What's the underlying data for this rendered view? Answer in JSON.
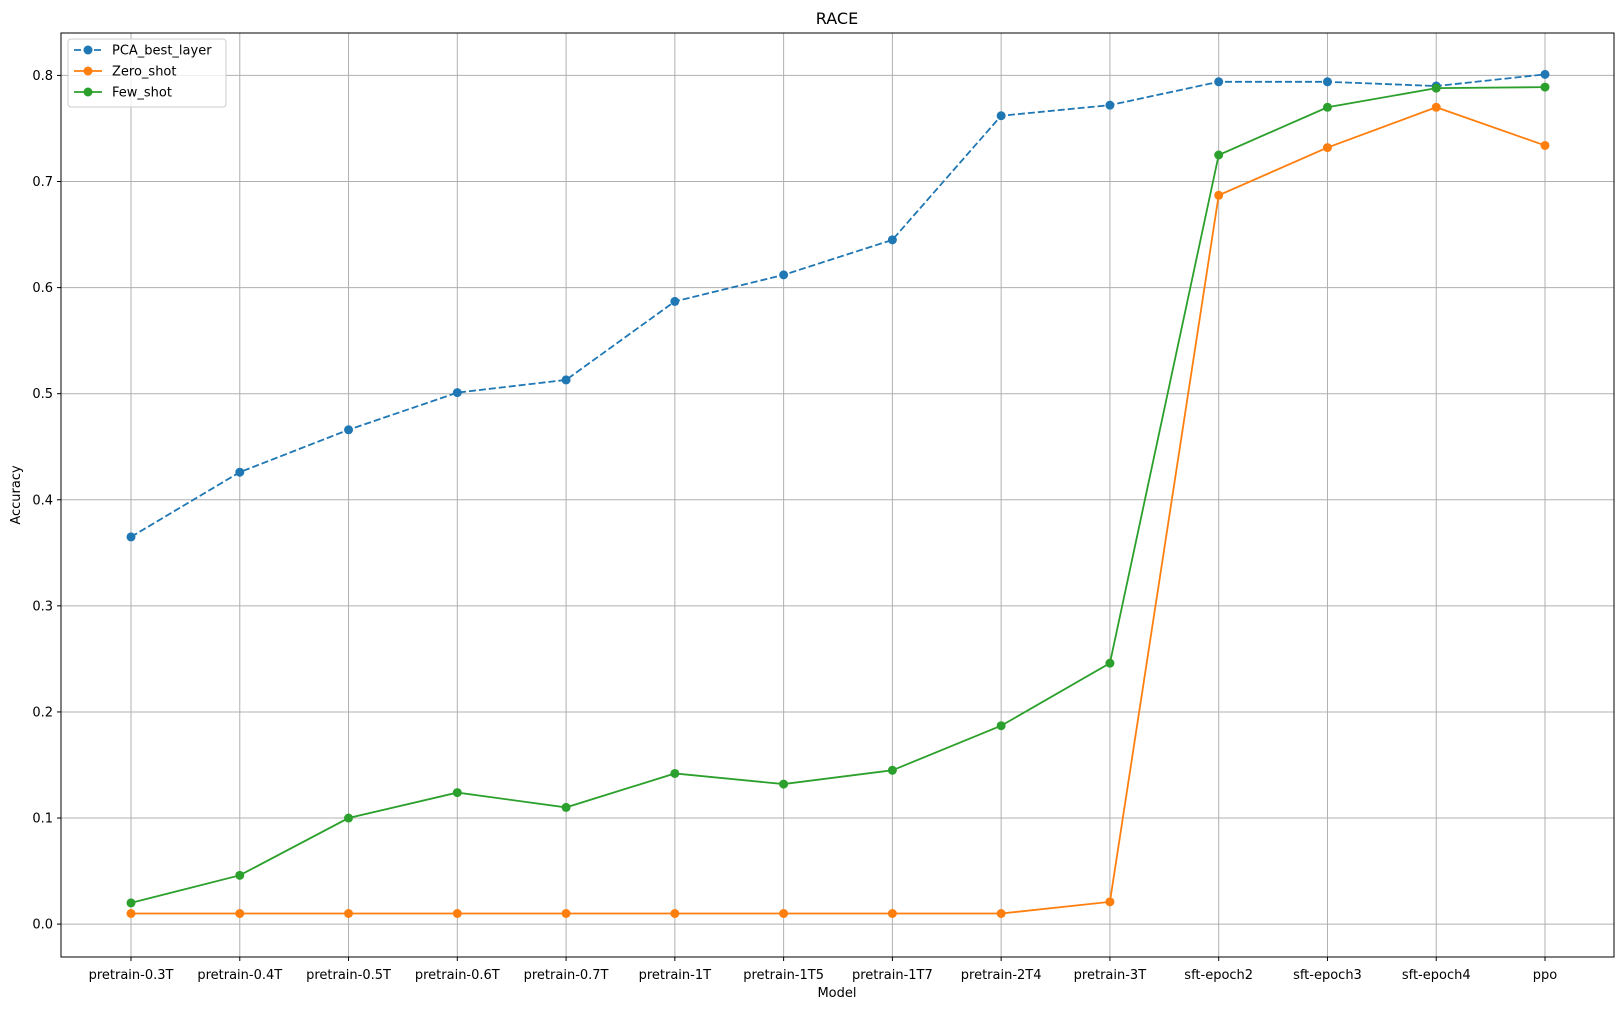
{
  "chart_data": {
    "type": "line",
    "title": "RACE",
    "xlabel": "Model",
    "ylabel": "Accuracy",
    "categories": [
      "pretrain-0.3T",
      "pretrain-0.4T",
      "pretrain-0.5T",
      "pretrain-0.6T",
      "pretrain-0.7T",
      "pretrain-1T",
      "pretrain-1T5",
      "pretrain-1T7",
      "pretrain-2T4",
      "pretrain-3T",
      "sft-epoch2",
      "sft-epoch3",
      "sft-epoch4",
      "ppo"
    ],
    "ylim": [
      -0.031,
      0.84
    ],
    "yticks": [
      0.0,
      0.1,
      0.2,
      0.3,
      0.4,
      0.5,
      0.6,
      0.7,
      0.8
    ],
    "ytick_labels": [
      "0.0",
      "0.1",
      "0.2",
      "0.3",
      "0.4",
      "0.5",
      "0.6",
      "0.7",
      "0.8"
    ],
    "grid": true,
    "legend_position": "top-left",
    "series": [
      {
        "name": "PCA_best_layer",
        "color": "#1f77b4",
        "linestyle": "dashed",
        "marker": "circle",
        "values": [
          0.365,
          0.426,
          0.466,
          0.501,
          0.513,
          0.587,
          0.612,
          0.645,
          0.762,
          0.772,
          0.794,
          0.794,
          0.79,
          0.801
        ]
      },
      {
        "name": "Zero_shot",
        "color": "#ff7f0e",
        "linestyle": "solid",
        "marker": "circle",
        "values": [
          0.01,
          0.01,
          0.01,
          0.01,
          0.01,
          0.01,
          0.01,
          0.01,
          0.01,
          0.021,
          0.687,
          0.732,
          0.77,
          0.734
        ]
      },
      {
        "name": "Few_shot",
        "color": "#2ca02c",
        "linestyle": "solid",
        "marker": "circle",
        "values": [
          0.02,
          0.046,
          0.1,
          0.124,
          0.11,
          0.142,
          0.132,
          0.145,
          0.187,
          0.246,
          0.725,
          0.77,
          0.788,
          0.789
        ]
      }
    ]
  }
}
